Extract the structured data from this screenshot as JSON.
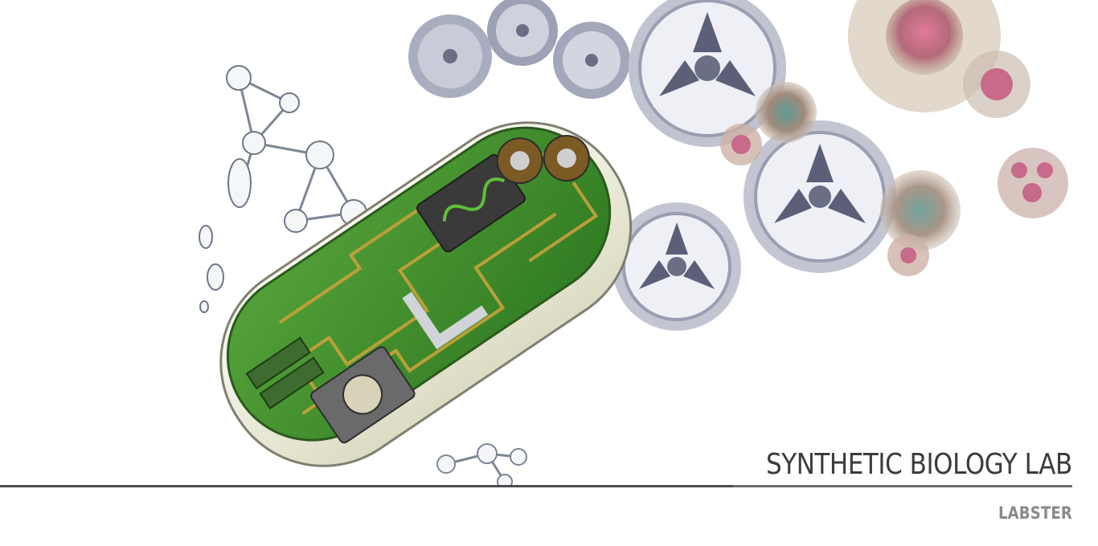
{
  "hero": {
    "image_name": "synthetic-cell-circuit-illustration",
    "colors": {
      "board_green": "#3f8f2a",
      "trace_gold": "#c9a23a",
      "gear_gray": "#8c90a6",
      "gear_dark": "#5b5f78",
      "cell_pink": "#c86a8a",
      "cell_teal": "#5f9a93",
      "membrane": "#eeeedc"
    }
  },
  "title": {
    "text": "SYNTHETIC BIOLOGY LAB",
    "color": "#3b3b3b"
  },
  "brand": {
    "text": "LABSTER",
    "color": "#8a8a8a"
  }
}
